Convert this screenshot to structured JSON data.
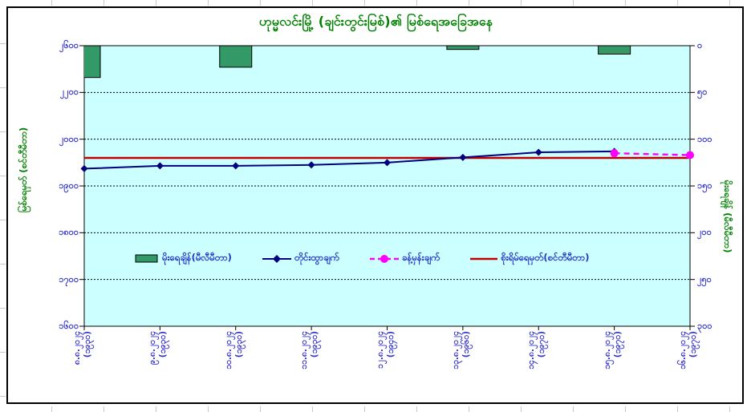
{
  "title": "ဟုမ္မလင်းမြို့ (ချင်းတွင်းမြစ်)၏ မြစ်ရေအခြေအနေ",
  "colors": {
    "plot_background": "#CCFFFF",
    "bar_fill": "#339966",
    "measured_line": "#000080",
    "forecast_line": "#FF00FF",
    "danger_line": "#C00000",
    "tick_label": "#3333CC",
    "title_green": "#008000"
  },
  "left_axis": {
    "title": "မြစ်ရေမှတ် (စင်တီမီတာ)",
    "labels": [
      "၂၆၀၀",
      "၂၂၀၀",
      "၂၀၀၀",
      "၁၉၀၀",
      "၁၈၀၀",
      "၁၇၀၀",
      "၁၆၀၀"
    ]
  },
  "right_axis": {
    "title": "မိုးရေချိန် (မီလီမီတာ)",
    "labels": [
      "၀",
      "၅၀",
      "၁၀၀",
      "၁၅၀",
      "၂၀၀",
      "၂၅၀",
      "၃၀၀"
    ]
  },
  "x_axis": {
    "labels": [
      {
        "date": "၈.၈.၂၀၂၄",
        "note": "(၁၉၃၀)"
      },
      {
        "date": "၉.၈.၂၀၂၄",
        "note": "(၁၉၃၀)"
      },
      {
        "date": "၁၀.၈.၂၀၂၄",
        "note": "(၁၉၃၀)"
      },
      {
        "date": "၁၁.၈.၂၀၂၄",
        "note": "(၁၉၃၀)"
      },
      {
        "date": "၁၂.၈.၂၀၂၄",
        "note": "(၁၉၄၀)"
      },
      {
        "date": "၁၃.၈.၂၀၂၄",
        "note": "(၁၉၆၀)"
      },
      {
        "date": "၁၄.၈.၂၀၂၄",
        "note": "(၁၉၇၀)"
      },
      {
        "date": "၁၅.၈.၂၀၂၄",
        "note": "(၁၉၇၀)"
      },
      {
        "date": "၁၆.၈.၂၀၂၄",
        "note": "(၁၉၇၀)"
      }
    ]
  },
  "legend": [
    {
      "label": "မိုးရေချိန်(မီလီမီတာ)",
      "swatch": "bar"
    },
    {
      "label": "တိုင်းထွာချက်",
      "swatch": "measured"
    },
    {
      "label": "ခန့်မှန်းချက်",
      "swatch": "forecast"
    },
    {
      "label": "စိုးရိမ်ရေမှတ်(စင်တီမီတာ)",
      "swatch": "danger"
    }
  ],
  "chart_data": {
    "type": "combo",
    "categories": [
      "8.8.2024",
      "9.8.2024",
      "10.8.2024",
      "11.8.2024",
      "12.8.2024",
      "13.8.2024",
      "14.8.2024",
      "15.8.2024",
      "16.8.2024"
    ],
    "left_axis_ticks_cm": [
      2600,
      2200,
      2000,
      1900,
      1800,
      1700,
      1600
    ],
    "right_axis_ticks_mm": [
      0,
      50,
      100,
      150,
      200,
      250,
      300
    ],
    "right_axis_inverted": true,
    "grid": "horizontal-dashed",
    "legend_position": "inside-bottom",
    "series": [
      {
        "name": "မိုးရေချိန်(မီလီမီတာ)",
        "type": "bar",
        "axis": "right",
        "unit": "mm",
        "values": [
          34,
          null,
          23,
          null,
          null,
          4,
          null,
          9,
          null
        ]
      },
      {
        "name": "တိုင်းထွာချက်",
        "type": "line",
        "axis": "left",
        "unit": "cm",
        "marker": "diamond",
        "values": [
          1937,
          1943,
          1943,
          1945,
          1950,
          1961,
          1972,
          1974,
          null
        ]
      },
      {
        "name": "ခန့်မှန်းချက်",
        "type": "line",
        "axis": "left",
        "unit": "cm",
        "marker": "circle",
        "dashed": true,
        "values": [
          null,
          null,
          null,
          null,
          null,
          null,
          null,
          1970,
          1966
        ]
      },
      {
        "name": "စိုးရိမ်ရေမှတ်(စင်တီမီတာ)",
        "type": "constant-line",
        "axis": "left",
        "unit": "cm",
        "value": 1960
      }
    ]
  }
}
